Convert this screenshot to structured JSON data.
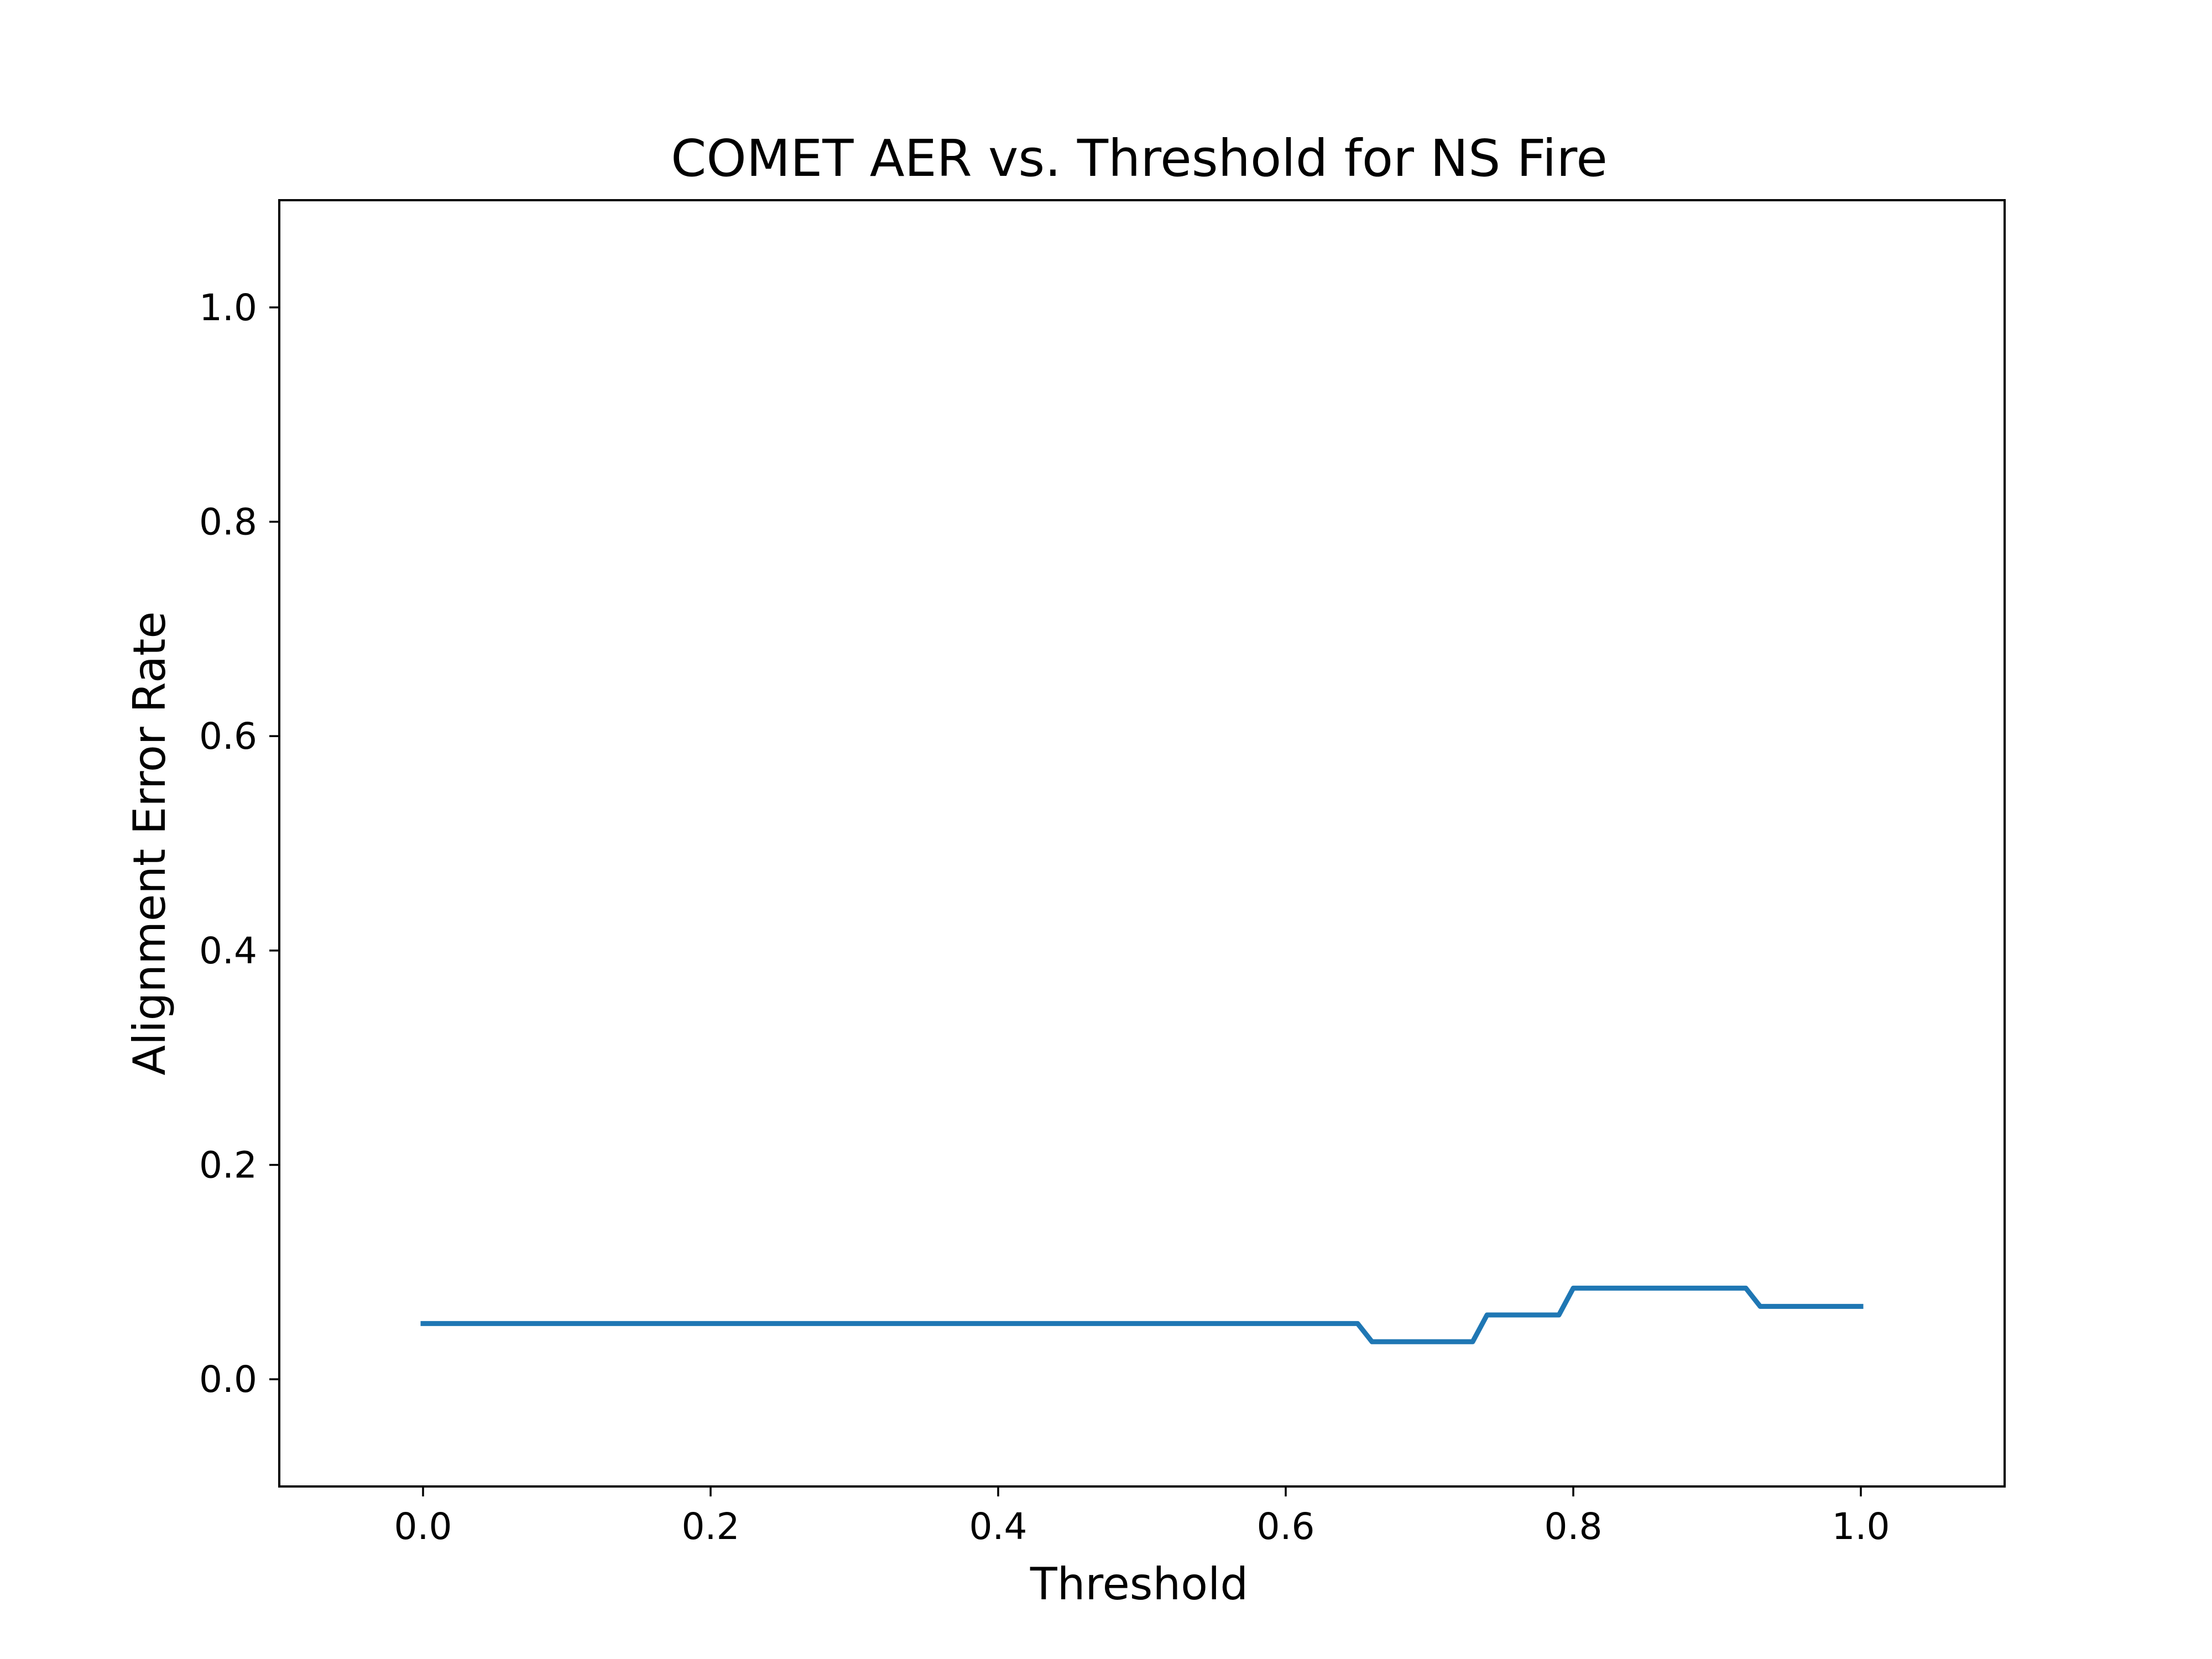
{
  "chart_data": {
    "type": "line",
    "title": "COMET AER vs. Threshold for NS Fire",
    "xlabel": "Threshold",
    "ylabel": "Alignment Error Rate",
    "xlim": [
      -0.1,
      1.1
    ],
    "ylim": [
      -0.1,
      1.1
    ],
    "grid": false,
    "x_ticks": [
      "0.0",
      "0.2",
      "0.4",
      "0.6",
      "0.8",
      "1.0"
    ],
    "y_ticks": [
      "0.0",
      "0.2",
      "0.4",
      "0.6",
      "0.8",
      "1.0"
    ],
    "x_tick_values": [
      0.0,
      0.2,
      0.4,
      0.6,
      0.8,
      1.0
    ],
    "y_tick_values": [
      0.0,
      0.2,
      0.4,
      0.6,
      0.8,
      1.0
    ],
    "series": [
      {
        "color": "#1f77b4",
        "x": [
          0.0,
          0.65,
          0.66,
          0.73,
          0.74,
          0.79,
          0.8,
          0.92,
          0.93,
          1.0
        ],
        "y": [
          0.052,
          0.052,
          0.035,
          0.035,
          0.06,
          0.06,
          0.085,
          0.085,
          0.068,
          0.068
        ]
      }
    ]
  }
}
